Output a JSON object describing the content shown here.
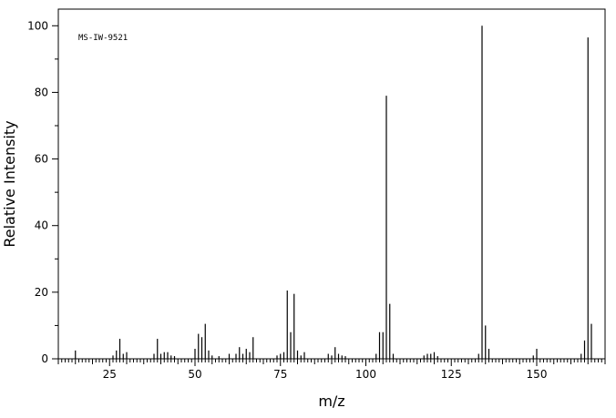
{
  "chart_data": {
    "type": "bar",
    "annotation": "MS-IW-9521",
    "xlabel": "m/z",
    "ylabel": "Relative Intensity",
    "xlim": [
      10,
      170
    ],
    "ylim": [
      0,
      105
    ],
    "x_ticks": [
      25,
      50,
      75,
      100,
      125,
      150
    ],
    "y_ticks": [
      0,
      20,
      40,
      60,
      80,
      100
    ],
    "grid": false,
    "series": [
      {
        "x": [
          15,
          26,
          27,
          28,
          29,
          30,
          38,
          39,
          40,
          41,
          42,
          43,
          44,
          50,
          51,
          52,
          53,
          54,
          55,
          57,
          60,
          62,
          63,
          64,
          65,
          66,
          67,
          74,
          75,
          76,
          77,
          78,
          79,
          80,
          81,
          82,
          89,
          90,
          91,
          92,
          93,
          94,
          103,
          104,
          105,
          106,
          107,
          108,
          117,
          118,
          119,
          120,
          121,
          133,
          134,
          135,
          136,
          149,
          150,
          163,
          164,
          165,
          166
        ],
        "values": [
          2.5,
          1.0,
          2.5,
          6.0,
          1.5,
          2.0,
          1.5,
          6.0,
          1.5,
          2.0,
          2.0,
          1.0,
          0.8,
          3.0,
          7.5,
          6.5,
          10.5,
          2.5,
          1.0,
          0.8,
          1.5,
          1.5,
          3.5,
          1.5,
          3.0,
          2.0,
          6.5,
          1.0,
          1.5,
          2.0,
          20.5,
          8.0,
          19.5,
          2.5,
          1.0,
          2.0,
          1.5,
          1.0,
          3.5,
          1.5,
          1.0,
          0.8,
          1.5,
          8.0,
          8.0,
          79.0,
          16.5,
          1.5,
          1.0,
          1.5,
          1.5,
          2.0,
          0.8,
          1.5,
          100.0,
          10.0,
          3.0,
          1.0,
          3.0,
          1.5,
          5.5,
          96.5,
          10.5
        ]
      }
    ]
  }
}
